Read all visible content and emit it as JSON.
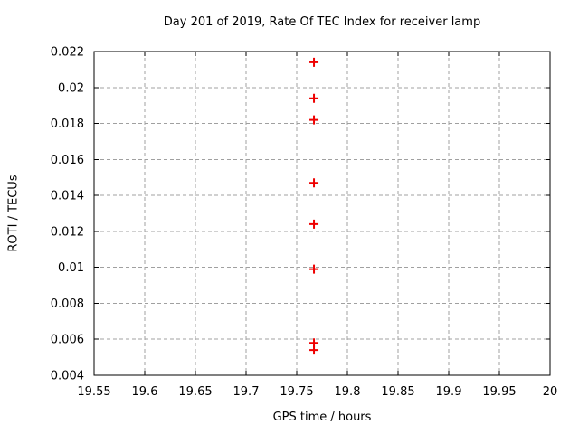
{
  "chart_data": {
    "type": "scatter",
    "title": "Day 201 of 2019, Rate Of TEC Index for receiver lamp",
    "xlabel": "GPS time / hours",
    "ylabel": "ROTI / TECUs",
    "xlim": [
      19.55,
      20
    ],
    "ylim": [
      0.004,
      0.022
    ],
    "grid": true,
    "legend": "none",
    "x_ticks": [
      {
        "v": 19.55,
        "label": "19.55"
      },
      {
        "v": 19.6,
        "label": "19.6"
      },
      {
        "v": 19.65,
        "label": "19.65"
      },
      {
        "v": 19.7,
        "label": "19.7"
      },
      {
        "v": 19.75,
        "label": "19.75"
      },
      {
        "v": 19.8,
        "label": "19.8"
      },
      {
        "v": 19.85,
        "label": "19.85"
      },
      {
        "v": 19.9,
        "label": "19.9"
      },
      {
        "v": 19.95,
        "label": "19.95"
      },
      {
        "v": 20,
        "label": "20"
      }
    ],
    "y_ticks": [
      {
        "v": 0.004,
        "label": "0.004"
      },
      {
        "v": 0.006,
        "label": "0.006"
      },
      {
        "v": 0.008,
        "label": "0.008"
      },
      {
        "v": 0.01,
        "label": "0.01"
      },
      {
        "v": 0.012,
        "label": "0.012"
      },
      {
        "v": 0.014,
        "label": "0.014"
      },
      {
        "v": 0.016,
        "label": "0.016"
      },
      {
        "v": 0.018,
        "label": "0.018"
      },
      {
        "v": 0.02,
        "label": "0.02"
      },
      {
        "v": 0.022,
        "label": "0.022"
      }
    ],
    "series": [
      {
        "name": "ROTI",
        "marker": "plus",
        "points": [
          {
            "x": 19.767,
            "y": 0.0214
          },
          {
            "x": 19.767,
            "y": 0.0194
          },
          {
            "x": 19.767,
            "y": 0.0182
          },
          {
            "x": 19.767,
            "y": 0.0147
          },
          {
            "x": 19.767,
            "y": 0.0124
          },
          {
            "x": 19.767,
            "y": 0.0099
          },
          {
            "x": 19.767,
            "y": 0.0058
          },
          {
            "x": 19.767,
            "y": 0.0054
          }
        ]
      }
    ],
    "colors": {
      "marker": "#ee0000",
      "grid": "#a0a0a0",
      "axis": "#000000",
      "background": "#ffffff"
    }
  }
}
